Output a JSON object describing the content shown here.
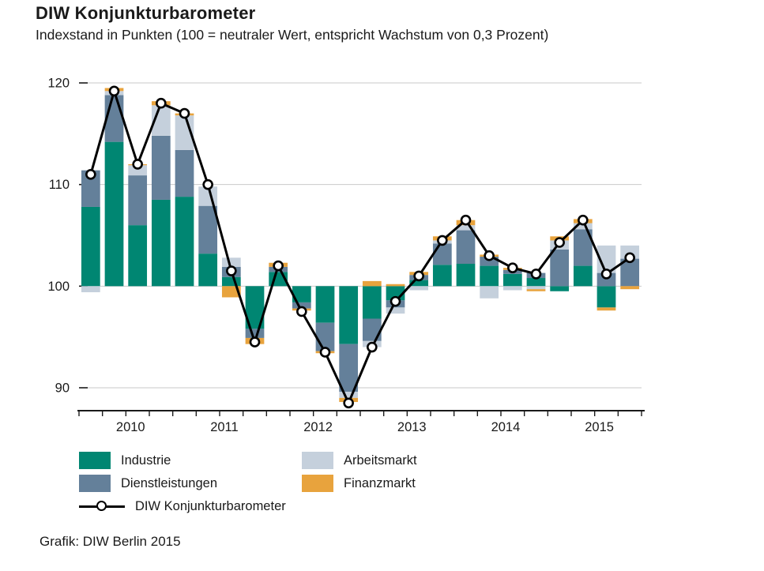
{
  "page": {
    "title": "DIW Konjunkturbarometer",
    "subtitle": "Indexstand in Punkten (100 = neutraler Wert, entspricht Wachstum von 0,3 Prozent)",
    "source": "Grafik: DIW Berlin 2015"
  },
  "chart_data": {
    "type": "bar",
    "subtype": "stacked-bars-with-line",
    "baseline": 100,
    "ylim": [
      87.5,
      120.8
    ],
    "yticks": [
      90,
      100,
      110,
      120
    ],
    "grid": "horizontal",
    "legend_position": "bottom",
    "x_year_labels": [
      "2010",
      "2011",
      "2012",
      "2013",
      "2014",
      "2015"
    ],
    "categories": [
      "2009 Q4",
      "2010 Q1",
      "2010 Q2",
      "2010 Q3",
      "2010 Q4",
      "2011 Q1",
      "2011 Q2",
      "2011 Q3",
      "2011 Q4",
      "2012 Q1",
      "2012 Q2",
      "2012 Q3",
      "2012 Q4",
      "2013 Q1",
      "2013 Q2",
      "2013 Q3",
      "2013 Q4",
      "2014 Q1",
      "2014 Q2",
      "2014 Q3",
      "2014 Q4",
      "2015 Q1",
      "2015 Q2",
      "2015 Q3"
    ],
    "series": [
      {
        "name": "Industrie",
        "color": "#008672",
        "values": [
          7.8,
          14.2,
          6.0,
          8.5,
          8.8,
          3.2,
          0.9,
          -4.2,
          1.4,
          -1.6,
          -3.6,
          -5.7,
          -3.2,
          -1.4,
          0.6,
          2.1,
          2.2,
          2.0,
          1.2,
          0.8,
          -0.5,
          2.0,
          -2.1,
          0.0
        ]
      },
      {
        "name": "Dienstleistungen",
        "color": "#64809a",
        "values": [
          3.6,
          4.6,
          4.9,
          6.3,
          4.6,
          4.7,
          1.0,
          -0.9,
          0.5,
          -0.6,
          -2.8,
          -4.7,
          -2.2,
          -0.7,
          0.5,
          2.1,
          3.3,
          0.9,
          0.4,
          0.5,
          3.6,
          3.6,
          1.3,
          2.7
        ]
      },
      {
        "name": "Arbeitsmarkt",
        "color": "#c5d0dc",
        "values": [
          -0.6,
          0.4,
          1.0,
          3.0,
          3.4,
          1.9,
          0.9,
          0.0,
          0.0,
          0.0,
          0.0,
          -0.6,
          -0.6,
          -0.6,
          -0.4,
          0.3,
          0.5,
          -1.2,
          -0.4,
          -0.3,
          0.9,
          0.6,
          2.7,
          1.3
        ]
      },
      {
        "name": "Finanzmarkt",
        "color": "#e8a33d",
        "values": [
          0.0,
          0.3,
          0.1,
          0.4,
          0.2,
          0.0,
          -1.1,
          -0.6,
          0.4,
          -0.2,
          -0.2,
          -0.4,
          0.5,
          0.2,
          0.3,
          0.4,
          0.5,
          0.2,
          0.2,
          -0.2,
          0.4,
          0.4,
          -0.3,
          -0.3
        ]
      }
    ],
    "line_series": {
      "name": "DIW Konjunkturbarometer",
      "color": "#000000",
      "marker": "open-circle",
      "values": [
        111.0,
        119.2,
        112.0,
        118.0,
        117.0,
        110.0,
        101.5,
        94.5,
        102.0,
        97.5,
        93.5,
        88.5,
        94.0,
        98.5,
        101.0,
        104.5,
        106.5,
        103.0,
        101.8,
        101.2,
        104.3,
        106.5,
        101.2,
        102.8
      ]
    },
    "colors": {
      "grid": "#c9c9c9",
      "axis": "#1a1a1a",
      "text": "#1a1a1a",
      "marker_fill": "#ffffff"
    }
  }
}
